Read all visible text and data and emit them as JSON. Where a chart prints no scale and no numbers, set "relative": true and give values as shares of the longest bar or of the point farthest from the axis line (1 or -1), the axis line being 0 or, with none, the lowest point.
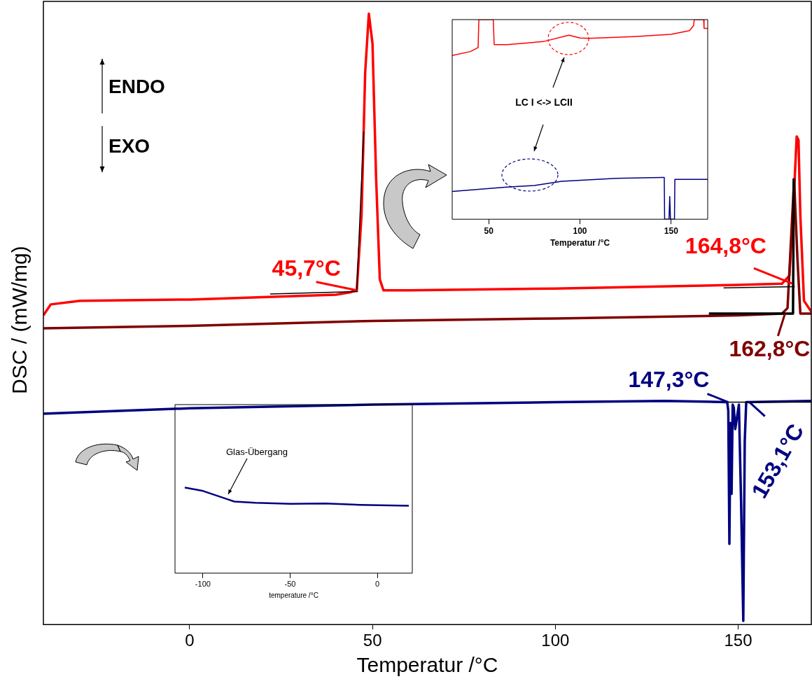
{
  "chart_data": [
    {
      "type": "line",
      "relative": true,
      "xlabel": "Temperatur /°C",
      "ylabel": "DSC / (mW/mg)",
      "xlim": [
        -40,
        170
      ],
      "xticks": [
        0,
        50,
        100,
        150
      ],
      "series": [
        {
          "color": "#ff0000",
          "x": [
            -40,
            -38,
            -30,
            0,
            20,
            40,
            44,
            45.7,
            47,
            48,
            49,
            50,
            51,
            52,
            53,
            60,
            100,
            150,
            162,
            164,
            165,
            166,
            166.5,
            167,
            168,
            170
          ],
          "values": [
            0.506,
            0.524,
            0.53,
            0.532,
            0.536,
            0.54,
            0.544,
            0.547,
            0.67,
            0.904,
            1,
            0.951,
            0.729,
            0.565,
            0.547,
            0.547,
            0.55,
            0.556,
            0.558,
            0.571,
            0.67,
            0.799,
            0.793,
            0.67,
            0.53,
            0.512
          ]
        },
        {
          "color": "#800000",
          "x": [
            -40,
            0,
            50,
            100,
            150,
            162,
            163.5,
            165.3,
            166.2,
            167,
            170
          ],
          "values": [
            0.485,
            0.489,
            0.497,
            0.501,
            0.506,
            0.509,
            0.518,
            0.729,
            0.6,
            0.509,
            0.509
          ]
        },
        {
          "color": "#000080",
          "x": [
            -40,
            0,
            50,
            100,
            130,
            147,
            147.3,
            147.6,
            147.9,
            148.2,
            148.5,
            148.8,
            149.2,
            150.2,
            150.8,
            151.4,
            151.8,
            152.2,
            170
          ],
          "values": [
            0.345,
            0.354,
            0.36,
            0.364,
            0.366,
            0.364,
            0.35,
            0.132,
            0.33,
            0.214,
            0.36,
            0.355,
            0.32,
            0.36,
            0.2,
            0.006,
            0.3,
            0.364,
            0.366
          ]
        },
        {
          "color": "#000000",
          "x": [
            22,
            46
          ],
          "values": [
            0.541,
            0.545
          ]
        },
        {
          "color": "#000000",
          "x": [
            45.7,
            47.6
          ],
          "values": [
            0.547,
            0.807
          ]
        },
        {
          "color": "#000000",
          "x": [
            142,
            165,
            165.2
          ],
          "values": [
            0.509,
            0.509,
            0.73
          ]
        },
        {
          "color": "#000000",
          "x": [
            146,
            165.5
          ],
          "values": [
            0.551,
            0.553
          ]
        },
        {
          "color": "#000000",
          "x": [
            147,
            170
          ],
          "values": [
            0.364,
            0.364
          ]
        }
      ],
      "annotations": [
        "ENDO",
        "EXO",
        {
          "text": "45,7°C",
          "x": 45.7,
          "y": 0.547
        },
        {
          "text": "164,8°C",
          "x": 164.8,
          "y": 0.558
        },
        {
          "text": "162,8°C",
          "x": 162.8,
          "y": 0.509
        },
        {
          "text": "147,3°C",
          "x": 147.3,
          "y": 0.364
        },
        {
          "text": "153,1°C",
          "x": 153.1,
          "y": 0.364
        }
      ]
    },
    {
      "type": "line",
      "relative": true,
      "xlabel": "Temperatur /°C",
      "xlim": [
        30,
        170
      ],
      "xticks": [
        50,
        100,
        150
      ],
      "series": [
        {
          "color": "#ff0000",
          "x": [
            30,
            40,
            44.2,
            44.6,
            52.5,
            53,
            60,
            80,
            94,
            100,
            105,
            130,
            150,
            160,
            162.3,
            162.6,
            167.8,
            168,
            170
          ],
          "values": [
            0.82,
            0.84,
            0.86,
            1,
            1,
            0.875,
            0.875,
            0.89,
            0.922,
            0.908,
            0.906,
            0.915,
            0.926,
            0.945,
            0.97,
            1,
            1,
            0.956,
            0.956
          ]
        },
        {
          "color": "#000080",
          "x": [
            30,
            60,
            75,
            90,
            120,
            145,
            146.2,
            146.4,
            148.8,
            149.2,
            149.6,
            150.5,
            151.8,
            152,
            170
          ],
          "values": [
            0.139,
            0.161,
            0.169,
            0.19,
            0.205,
            0.209,
            0.209,
            0,
            0,
            0.114,
            0,
            0,
            0,
            0.2,
            0.2
          ]
        }
      ],
      "annotations": [
        "LC I <-> LCII"
      ]
    },
    {
      "type": "line",
      "relative": true,
      "xlabel": "temperature /°C",
      "xlim": [
        -116,
        20
      ],
      "xticks": [
        -100,
        -50,
        0
      ],
      "series": [
        {
          "color": "#000080",
          "x": [
            -110.4,
            -100,
            -86,
            -82,
            -70,
            -50,
            -30,
            -10,
            18
          ],
          "values": [
            1,
            0.961,
            0.864,
            0.837,
            0.823,
            0.811,
            0.815,
            0.799,
            0.787
          ]
        }
      ],
      "annotations": [
        "Glas-Übergang"
      ]
    }
  ]
}
